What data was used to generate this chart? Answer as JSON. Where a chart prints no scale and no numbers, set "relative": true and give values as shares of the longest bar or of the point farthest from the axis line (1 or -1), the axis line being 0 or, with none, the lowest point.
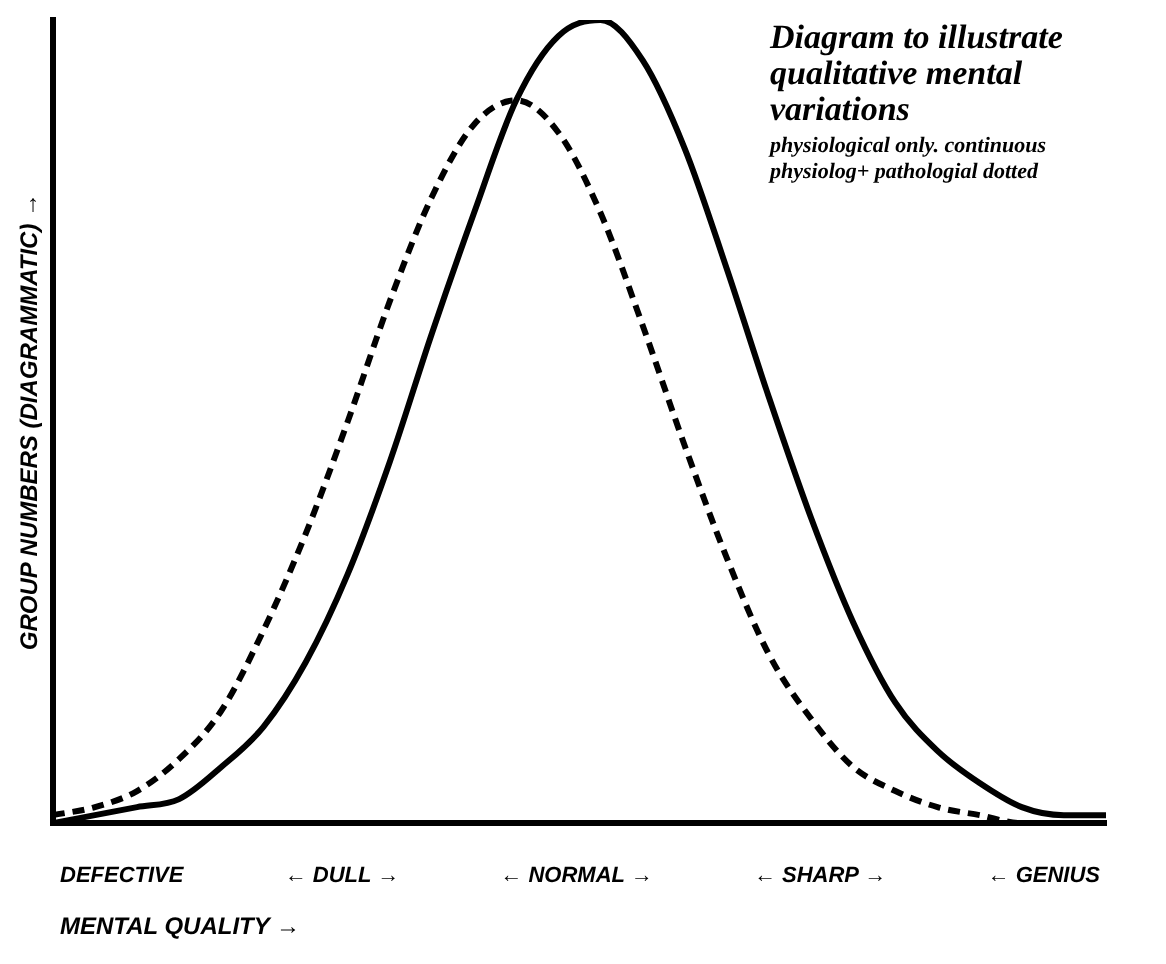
{
  "chart_data": {
    "type": "line",
    "title": "Diagram to illustrate qualitative mental variations",
    "subtitle": "physiological only. continuous\nphysiolog+ pathologial dotted",
    "xlabel": "MENTAL QUALITY →",
    "ylabel": "GROUP NUMBERS (DIAGRAMMATIC) →",
    "annotations": [
      "DEFECTIVE",
      "← DULL →",
      "← NORMAL →",
      "← SHARP →",
      "← GENIUS"
    ],
    "categories": [
      null,
      null,
      null,
      null,
      null,
      null,
      null,
      null,
      null,
      null,
      null,
      null,
      null,
      null,
      null,
      null,
      null,
      null,
      null,
      null,
      null,
      null,
      null,
      null,
      null,
      null
    ],
    "relative": true,
    "legend": false,
    "grid": false,
    "marker": "none",
    "series": [
      {
        "color": "#000000",
        "line_style": "solid",
        "values": [
          0.0,
          0.01,
          0.02,
          0.03,
          0.07,
          0.12,
          0.2,
          0.31,
          0.45,
          0.61,
          0.76,
          0.9,
          0.98,
          1,
          0.95,
          0.84,
          0.69,
          0.53,
          0.38,
          0.25,
          0.15,
          0.09,
          0.05,
          0.02,
          0.01,
          0.01
        ]
      },
      {
        "color": "#000000",
        "line_style": "dashed",
        "values": [
          0.01,
          0.02,
          0.04,
          0.08,
          0.14,
          0.24,
          0.36,
          0.5,
          0.65,
          0.78,
          0.87,
          0.9,
          0.86,
          0.76,
          0.62,
          0.47,
          0.33,
          0.21,
          0.13,
          0.07,
          0.04,
          0.02,
          0.01,
          0.0,
          0.0,
          0.0
        ]
      }
    ]
  }
}
